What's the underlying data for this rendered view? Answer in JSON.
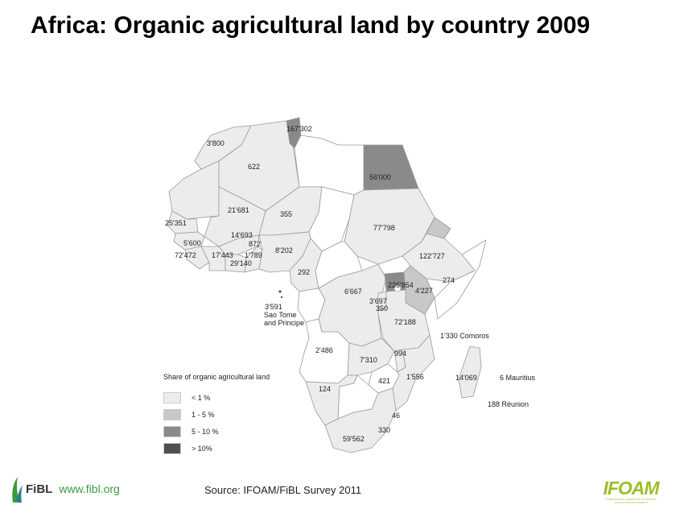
{
  "title": "Africa: Organic agricultural land by country 2009",
  "colors": {
    "lt1": "#ececec",
    "c1to5": "#c8c8c8",
    "c5to10": "#8a8a8a",
    "gt10": "#505050",
    "none": "#ffffff",
    "border": "#9a9a9a",
    "fibl_green": "#3a9a3a",
    "ifoam_green": "#9abf2a"
  },
  "labels": {
    "tunisia": "167'302",
    "morocco": "3'800",
    "algeria": "622",
    "egypt": "56'000",
    "mali": "21'681",
    "niger": "355",
    "senegal": "25'351",
    "sudan": "77'798",
    "burkina": "14'693",
    "benin_togo": "872",
    "guinea": "5'600",
    "sierra_leone": "72'472",
    "ivory_coast": "17'443",
    "ghana": "29'140",
    "togo": "1'789",
    "nigeria": "8'202",
    "ethiopia": "122'727",
    "cameroon": "292",
    "uganda": "226'954",
    "somalia": "274",
    "kenya": "4'227",
    "drc": "6'667",
    "rwanda": "3'697",
    "burundi": "350",
    "stp": "3'591",
    "stp_name1": "Sao Tome",
    "stp_name2": "and Principe",
    "tanzania": "72'188",
    "comoros": "1'330 Comoros",
    "angola": "2'486",
    "malawi": "994",
    "zambia": "7'310",
    "madagascar": "14'069",
    "mauritius": "6 Mauritius",
    "mozambique": "1'556",
    "reunion": "188 Réunion",
    "zimbabwe": "421",
    "namibia": "124",
    "swaziland": "46",
    "lesotho": "330",
    "south_africa": "59'562"
  },
  "legend": {
    "title": "Share of organic agricultural land",
    "items": [
      {
        "label": "< 1 %",
        "color": "#ececec"
      },
      {
        "label": "1 - 5 %",
        "color": "#c8c8c8"
      },
      {
        "label": "5 - 10 %",
        "color": "#8a8a8a"
      },
      {
        "label": "> 10%",
        "color": "#505050"
      }
    ]
  },
  "source": "Source: IFOAM/FiBL Survey 2011",
  "fibl": {
    "name": "FiBL",
    "url": "www.fibl.org"
  },
  "ifoam": {
    "name": "IFOAM",
    "sub": "INTERNATIONAL FEDERATION OF ORGANIC AGRICULTURE MOVEMENTS"
  }
}
